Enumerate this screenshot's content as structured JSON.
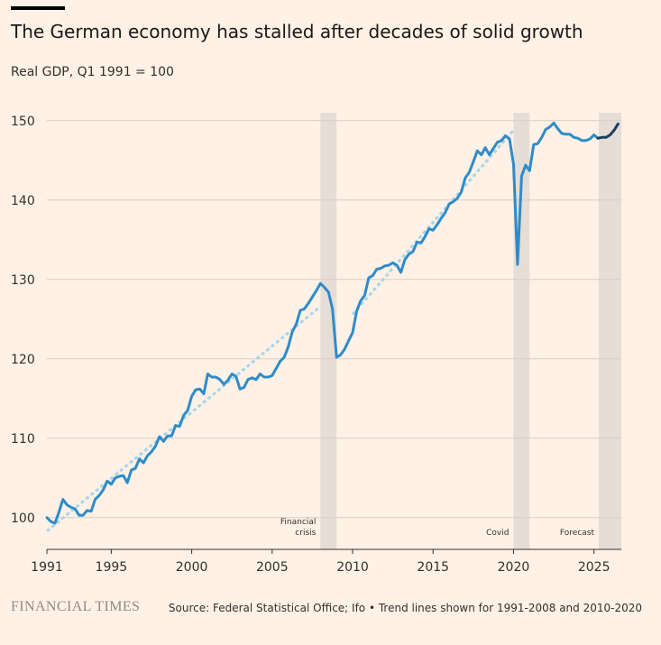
{
  "header": {
    "title": "The German economy has stalled after decades of solid growth",
    "subtitle": "Real GDP, Q1 1991 = 100"
  },
  "footer": {
    "brand": "FINANCIAL TIMES",
    "source": "Source: Federal Statistical Office; Ifo • Trend lines shown for 1991-2008 and 2010-2020"
  },
  "chart_data": {
    "type": "line",
    "title": "The German economy has stalled after decades of solid growth",
    "subtitle": "Real GDP, Q1 1991 = 100",
    "xlim": [
      1991,
      2026.7
    ],
    "ylim": [
      96,
      151
    ],
    "x_ticks": [
      1991,
      1995,
      2000,
      2005,
      2010,
      2015,
      2020,
      2025
    ],
    "x_tick_labels": [
      "1991",
      "1995",
      "2000",
      "2005",
      "2010",
      "2015",
      "2020",
      "2025"
    ],
    "y_ticks": [
      100,
      110,
      120,
      130,
      140,
      150
    ],
    "y_tick_labels": [
      "100",
      "110",
      "120",
      "130",
      "140",
      "150"
    ],
    "grid": "horizontal",
    "colors": {
      "actual": "#2E8BC9",
      "forecast": "#1F3E63",
      "trend": "#A6D6E8",
      "shading": "#E6DDD6",
      "grid": "#D9CEC5",
      "axis": "#33302E"
    },
    "shaded_regions": [
      {
        "label": "Financial crisis",
        "label_lines": [
          "Financial",
          "crisis"
        ],
        "x": [
          2008.0,
          2009.0
        ]
      },
      {
        "label": "Covid",
        "label_lines": [
          "Covid"
        ],
        "x": [
          2020.0,
          2021.0
        ]
      },
      {
        "label": "Forecast",
        "label_lines": [
          "Forecast"
        ],
        "x": [
          2025.3,
          2026.7
        ]
      }
    ],
    "series": [
      {
        "style": "solid",
        "x": [
          1991.0,
          1991.25,
          1991.5,
          1991.75,
          1992.0,
          1992.25,
          1992.5,
          1992.75,
          1993.0,
          1993.25,
          1993.5,
          1993.75,
          1994.0,
          1994.25,
          1994.5,
          1994.75,
          1995.0,
          1995.25,
          1995.5,
          1995.75,
          1996.0,
          1996.25,
          1996.5,
          1996.75,
          1997.0,
          1997.25,
          1997.5,
          1997.75,
          1998.0,
          1998.25,
          1998.5,
          1998.75,
          1999.0,
          1999.25,
          1999.5,
          1999.75,
          2000.0,
          2000.25,
          2000.5,
          2000.75,
          2001.0,
          2001.25,
          2001.5,
          2001.75,
          2002.0,
          2002.25,
          2002.5,
          2002.75,
          2003.0,
          2003.25,
          2003.5,
          2003.75,
          2004.0,
          2004.25,
          2004.5,
          2004.75,
          2005.0,
          2005.25,
          2005.5,
          2005.75,
          2006.0,
          2006.25,
          2006.5,
          2006.75,
          2007.0,
          2007.25,
          2007.5,
          2007.75,
          2008.0,
          2008.25,
          2008.5,
          2008.75,
          2009.0,
          2009.25,
          2009.5,
          2009.75,
          2010.0,
          2010.25,
          2010.5,
          2010.75,
          2011.0,
          2011.25,
          2011.5,
          2011.75,
          2012.0,
          2012.25,
          2012.5,
          2012.75,
          2013.0,
          2013.25,
          2013.5,
          2013.75,
          2014.0,
          2014.25,
          2014.5,
          2014.75,
          2015.0,
          2015.25,
          2015.5,
          2015.75,
          2016.0,
          2016.25,
          2016.5,
          2016.75,
          2017.0,
          2017.25,
          2017.5,
          2017.75,
          2018.0,
          2018.25,
          2018.5,
          2018.75,
          2019.0,
          2019.25,
          2019.5,
          2019.75,
          2020.0,
          2020.25,
          2020.5,
          2020.75,
          2021.0,
          2021.25,
          2021.5,
          2021.75,
          2022.0,
          2022.25,
          2022.5,
          2022.75,
          2023.0,
          2023.25,
          2023.5,
          2023.75,
          2024.0,
          2024.25,
          2024.5,
          2024.75,
          2025.0,
          2025.25
        ],
        "values": [
          100.0,
          99.5,
          99.3,
          100.7,
          102.3,
          101.6,
          101.3,
          101.1,
          100.3,
          100.3,
          100.9,
          100.8,
          102.3,
          102.8,
          103.5,
          104.6,
          104.2,
          105.0,
          105.2,
          105.3,
          104.4,
          106.0,
          106.2,
          107.4,
          106.9,
          107.8,
          108.3,
          109.0,
          110.2,
          109.6,
          110.3,
          110.3,
          111.6,
          111.5,
          112.9,
          113.5,
          115.3,
          116.1,
          116.2,
          115.6,
          118.1,
          117.7,
          117.7,
          117.4,
          116.8,
          117.3,
          118.1,
          117.8,
          116.2,
          116.4,
          117.4,
          117.6,
          117.4,
          118.1,
          117.7,
          117.7,
          117.9,
          118.8,
          119.7,
          120.2,
          121.5,
          123.4,
          124.4,
          126.1,
          126.3,
          127.0,
          127.8,
          128.6,
          129.5,
          129.0,
          128.4,
          126.3,
          120.2,
          120.5,
          121.2,
          122.3,
          123.3,
          126.0,
          127.3,
          128.0,
          130.2,
          130.5,
          131.3,
          131.4,
          131.7,
          131.8,
          132.1,
          131.8,
          130.9,
          132.5,
          133.2,
          133.5,
          134.7,
          134.6,
          135.4,
          136.4,
          136.2,
          136.9,
          137.7,
          138.4,
          139.5,
          139.8,
          140.2,
          141.0,
          142.8,
          143.5,
          144.8,
          146.2,
          145.7,
          146.6,
          145.7,
          146.5,
          147.3,
          147.5,
          148.1,
          147.7,
          144.5,
          131.9,
          143.0,
          144.4,
          143.7,
          147.0,
          147.1,
          147.9,
          148.9,
          149.2,
          149.7,
          149.0,
          148.4,
          148.3,
          148.3,
          147.9,
          147.8,
          147.5,
          147.5,
          147.7,
          148.2,
          147.8
        ]
      },
      {
        "style": "solid-forecast",
        "x": [
          2025.25,
          2025.5,
          2025.75,
          2026.0,
          2026.25,
          2026.5
        ],
        "values": [
          147.8,
          147.9,
          147.9,
          148.2,
          148.8,
          149.6
        ]
      },
      {
        "style": "dashed-trend",
        "x": [
          1991.0,
          2008.0
        ],
        "values": [
          98.3,
          126.6
        ]
      },
      {
        "style": "dashed-trend",
        "x": [
          2010.0,
          2020.0
        ],
        "values": [
          125.6,
          148.8
        ]
      }
    ]
  }
}
